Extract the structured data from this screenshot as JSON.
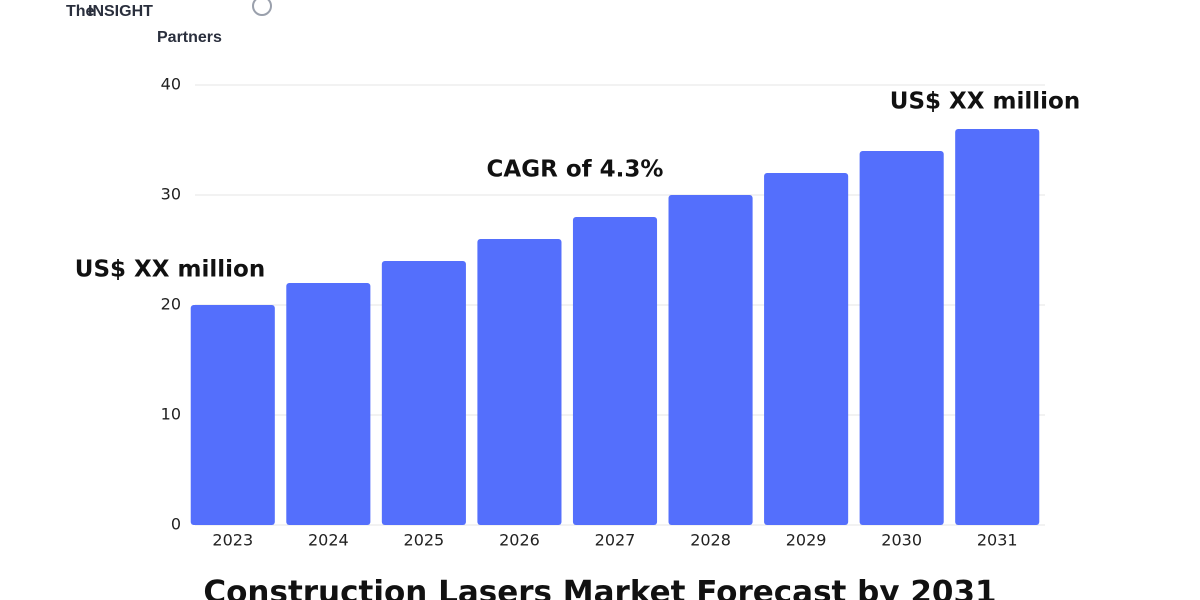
{
  "logo": {
    "top": "The",
    "brand": "INSIGHT",
    "bottom": "Partners"
  },
  "chart_data": {
    "type": "bar",
    "title": "Construction Lasers Market Forecast by 2031",
    "categories": [
      "2023",
      "2024",
      "2025",
      "2026",
      "2027",
      "2028",
      "2029",
      "2030",
      "2031"
    ],
    "values": [
      20,
      22,
      24,
      26,
      28,
      30,
      32,
      34,
      36
    ],
    "color": "#546ffc",
    "ylim": [
      0,
      40
    ],
    "yticks": [
      0,
      10,
      20,
      30,
      40
    ],
    "grid": true,
    "annotations": [
      "US$ XX million",
      "CAGR of 4.3%",
      "US$ XX million"
    ]
  }
}
